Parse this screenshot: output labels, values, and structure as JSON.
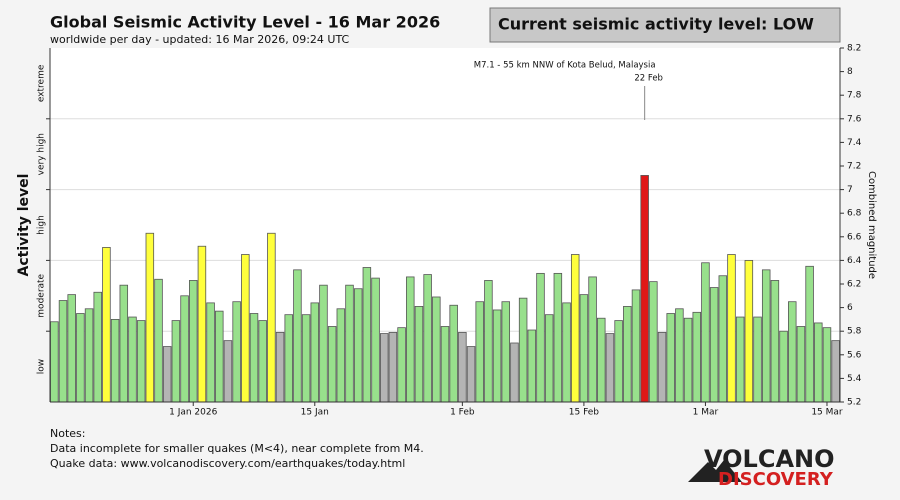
{
  "chart_data": {
    "type": "bar",
    "title": "Global Seismic Activity Level - 16 Mar 2026",
    "subtitle": "worldwide per day - updated: 16 Mar 2026, 09:24 UTC",
    "status": "Current seismic activity level: LOW",
    "ylabel": "Activity level",
    "y2label": "Combined magnitude",
    "levels": [
      "low",
      "moderate",
      "high",
      "very high",
      "extreme"
    ],
    "level_bounds": [
      5.8,
      6.4,
      7,
      7.6
    ],
    "categories": [
      null,
      null,
      null,
      null,
      null,
      null,
      null,
      null,
      null,
      null,
      null,
      null,
      null,
      null,
      null,
      null,
      "1 Jan 2026",
      null,
      null,
      null,
      null,
      null,
      null,
      null,
      null,
      null,
      null,
      null,
      null,
      null,
      "15 Jan",
      null,
      null,
      null,
      null,
      null,
      null,
      null,
      null,
      null,
      null,
      null,
      null,
      null,
      null,
      null,
      null,
      "1 Feb",
      null,
      null,
      null,
      null,
      null,
      null,
      null,
      null,
      null,
      null,
      null,
      null,
      null,
      "15 Feb",
      null,
      null,
      null,
      null,
      null,
      null,
      null,
      null,
      null,
      null,
      null,
      null,
      null,
      "1 Mar",
      null,
      null,
      null,
      null,
      null,
      null,
      null,
      null,
      null,
      null,
      null,
      null,
      null,
      "15 Mar",
      null
    ],
    "values": [
      5.88,
      6.06,
      6.11,
      5.95,
      5.99,
      6.13,
      6.51,
      5.9,
      6.19,
      5.92,
      5.89,
      6.63,
      6.24,
      5.67,
      5.89,
      6.1,
      6.23,
      6.52,
      6.04,
      5.97,
      5.72,
      6.05,
      6.45,
      5.95,
      5.89,
      6.63,
      5.79,
      5.94,
      6.32,
      5.94,
      6.04,
      6.19,
      5.84,
      5.99,
      6.19,
      6.16,
      6.34,
      6.25,
      5.78,
      5.79,
      5.83,
      6.26,
      6.01,
      6.28,
      6.09,
      5.84,
      6.02,
      5.79,
      5.67,
      6.05,
      6.23,
      5.98,
      6.05,
      5.7,
      6.08,
      5.81,
      6.29,
      5.94,
      6.29,
      6.04,
      6.45,
      6.11,
      6.26,
      5.91,
      5.78,
      5.89,
      6.01,
      6.15,
      7.12,
      6.22,
      5.79,
      5.95,
      5.99,
      5.91,
      5.96,
      6.38,
      6.17,
      6.27,
      6.45,
      5.92,
      6.4,
      5.92,
      6.32,
      6.23,
      5.8,
      6.05,
      5.84,
      6.35,
      5.87,
      5.83,
      5.72
    ],
    "colors": [
      "#98e08c",
      "#98e08c",
      "#98e08c",
      "#98e08c",
      "#98e08c",
      "#98e08c",
      "#ffff3c",
      "#98e08c",
      "#98e08c",
      "#98e08c",
      "#98e08c",
      "#ffff3c",
      "#98e08c",
      "#b4b4b4",
      "#98e08c",
      "#98e08c",
      "#98e08c",
      "#ffff3c",
      "#98e08c",
      "#98e08c",
      "#b4b4b4",
      "#98e08c",
      "#ffff3c",
      "#98e08c",
      "#98e08c",
      "#ffff3c",
      "#b4b4b4",
      "#98e08c",
      "#98e08c",
      "#98e08c",
      "#98e08c",
      "#98e08c",
      "#98e08c",
      "#98e08c",
      "#98e08c",
      "#98e08c",
      "#98e08c",
      "#98e08c",
      "#b4b4b4",
      "#b4b4b4",
      "#98e08c",
      "#98e08c",
      "#98e08c",
      "#98e08c",
      "#98e08c",
      "#98e08c",
      "#98e08c",
      "#b4b4b4",
      "#b4b4b4",
      "#98e08c",
      "#98e08c",
      "#98e08c",
      "#98e08c",
      "#b4b4b4",
      "#98e08c",
      "#98e08c",
      "#98e08c",
      "#98e08c",
      "#98e08c",
      "#98e08c",
      "#ffff3c",
      "#98e08c",
      "#98e08c",
      "#98e08c",
      "#b4b4b4",
      "#98e08c",
      "#98e08c",
      "#98e08c",
      "#e01818",
      "#98e08c",
      "#b4b4b4",
      "#98e08c",
      "#98e08c",
      "#98e08c",
      "#98e08c",
      "#98e08c",
      "#98e08c",
      "#98e08c",
      "#ffff3c",
      "#98e08c",
      "#ffff3c",
      "#98e08c",
      "#98e08c",
      "#98e08c",
      "#98e08c",
      "#98e08c",
      "#98e08c",
      "#98e08c",
      "#98e08c",
      "#98e08c",
      "#b4b4b4"
    ],
    "ylim": [
      5.2,
      8.2
    ],
    "yticks": [
      5.2,
      5.4,
      5.6,
      5.8,
      6,
      6.2,
      6.4,
      6.6,
      6.8,
      7,
      7.2,
      7.4,
      7.6,
      7.8,
      8,
      8.2
    ],
    "annotation": {
      "text": "M7.1 - 55 km NNW of Kota Belud, Malaysia",
      "date": "22 Feb"
    },
    "notes": [
      "Notes:",
      "Data incomplete for smaller quakes (M<4), near complete from M4.",
      "Quake data: www.volcanodiscovery.com/earthquakes/today.html"
    ],
    "logo": [
      "VOLCANO",
      "DISCOVERY"
    ]
  }
}
